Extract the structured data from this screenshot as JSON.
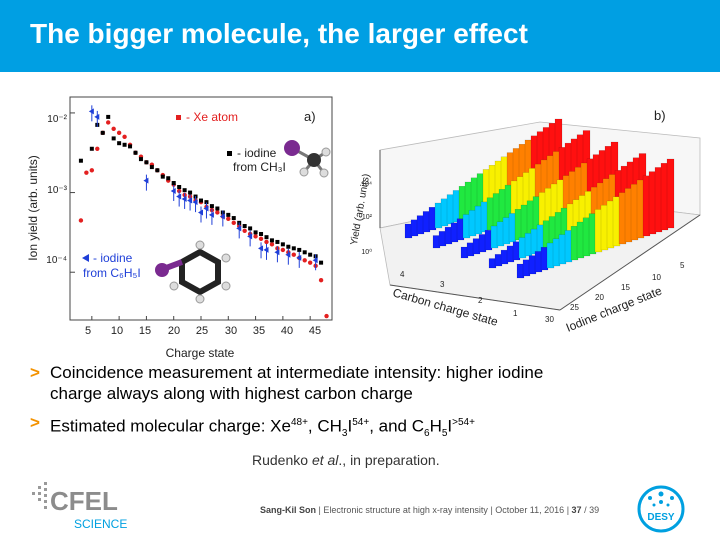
{
  "slide": {
    "title": "The bigger molecule, the larger effect",
    "bullets": {
      "b1_line1": "Coincidence measurement at intermediate intensity: higher iodine",
      "b1_line2": "charge always along with highest carbon charge",
      "b2_pre": "Estimated molecular charge: Xe",
      "b2_xe_sup": "48+",
      "b2_mid1": ", CH",
      "b2_ch_sub": "3",
      "b2_i1": "I",
      "b2_i1_sup": "54+",
      "b2_mid2": ", and C",
      "b2_c_sub": "6",
      "b2_h": "H",
      "b2_h_sub": "5",
      "b2_i2": "I",
      "b2_i2_sup": ">54+"
    },
    "citation_pre": "Rudenko ",
    "citation_em": "et al",
    "citation_post": "., in preparation.",
    "footer": {
      "author": "Sang-Kil Son",
      "talk": "Electronic structure at high x-ray intensity",
      "date": "October 11, 2016",
      "page": "37",
      "total": "39"
    },
    "logos": {
      "cfel_text": "CFEL",
      "cfel_sub": "SCIENCE",
      "desy_text": "DESY"
    },
    "colors": {
      "title_bar": "#009fe3",
      "bullet_mark": "#f39200"
    }
  },
  "chart_data": [
    {
      "type": "scatter",
      "panel_label": "a)",
      "xlabel": "Charge state",
      "ylabel": "Ion yield  (arb. units)",
      "xticks": [
        "5",
        "10",
        "15",
        "20",
        "25",
        "30",
        "35",
        "40",
        "45"
      ],
      "yticks": [
        "10⁻²",
        "10⁻³",
        "10⁻⁴"
      ],
      "xlim": [
        1,
        49
      ],
      "ylog_range": [
        -4.6,
        -1.8
      ],
      "legend": [
        {
          "name": "- Xe atom",
          "color": "#e32020"
        },
        {
          "name": "- iodine",
          "sub": "from CH₃I",
          "color": "#000000"
        },
        {
          "name": "- iodine",
          "sub": "from C₆H₅I",
          "color": "#1f3fd8"
        }
      ],
      "series": [
        {
          "name": "Xe atom",
          "color": "#e32020",
          "points": [
            [
              3,
              -3.35
            ],
            [
              4,
              -2.75
            ],
            [
              5,
              -2.72
            ],
            [
              6,
              -2.45
            ],
            [
              7,
              -2.25
            ],
            [
              8,
              -2.12
            ],
            [
              9,
              -2.2
            ],
            [
              10,
              -2.25
            ],
            [
              11,
              -2.3
            ],
            [
              12,
              -2.4
            ],
            [
              13,
              -2.5
            ],
            [
              14,
              -2.55
            ],
            [
              15,
              -2.62
            ],
            [
              16,
              -2.65
            ],
            [
              17,
              -2.72
            ],
            [
              18,
              -2.78
            ],
            [
              19,
              -2.85
            ],
            [
              20,
              -2.9
            ],
            [
              21,
              -2.98
            ],
            [
              22,
              -3.03
            ],
            [
              23,
              -3.05
            ],
            [
              24,
              -3.1
            ],
            [
              25,
              -3.12
            ],
            [
              26,
              -3.18
            ],
            [
              27,
              -3.22
            ],
            [
              28,
              -3.25
            ],
            [
              29,
              -3.3
            ],
            [
              30,
              -3.33
            ],
            [
              31,
              -3.38
            ],
            [
              32,
              -3.42
            ],
            [
              33,
              -3.48
            ],
            [
              34,
              -3.52
            ],
            [
              35,
              -3.55
            ],
            [
              36,
              -3.58
            ],
            [
              37,
              -3.62
            ],
            [
              38,
              -3.65
            ],
            [
              39,
              -3.7
            ],
            [
              40,
              -3.72
            ],
            [
              41,
              -3.75
            ],
            [
              42,
              -3.78
            ],
            [
              43,
              -3.82
            ],
            [
              44,
              -3.85
            ],
            [
              45,
              -3.88
            ],
            [
              46,
              -3.92
            ],
            [
              47,
              -4.1
            ],
            [
              48,
              -4.55
            ]
          ]
        },
        {
          "name": "iodine from CH3I",
          "color": "#000000",
          "points": [
            [
              3,
              -2.6
            ],
            [
              5,
              -2.45
            ],
            [
              6,
              -2.15
            ],
            [
              7,
              -2.25
            ],
            [
              8,
              -2.05
            ],
            [
              9,
              -2.32
            ],
            [
              10,
              -2.38
            ],
            [
              11,
              -2.4
            ],
            [
              12,
              -2.42
            ],
            [
              13,
              -2.5
            ],
            [
              14,
              -2.58
            ],
            [
              15,
              -2.62
            ],
            [
              16,
              -2.68
            ],
            [
              17,
              -2.72
            ],
            [
              18,
              -2.8
            ],
            [
              19,
              -2.82
            ],
            [
              20,
              -2.88
            ],
            [
              21,
              -2.93
            ],
            [
              22,
              -2.97
            ],
            [
              23,
              -3.0
            ],
            [
              24,
              -3.05
            ],
            [
              25,
              -3.1
            ],
            [
              26,
              -3.12
            ],
            [
              27,
              -3.17
            ],
            [
              28,
              -3.2
            ],
            [
              29,
              -3.25
            ],
            [
              30,
              -3.28
            ],
            [
              31,
              -3.32
            ],
            [
              32,
              -3.38
            ],
            [
              33,
              -3.42
            ],
            [
              34,
              -3.45
            ],
            [
              35,
              -3.5
            ],
            [
              36,
              -3.52
            ],
            [
              37,
              -3.56
            ],
            [
              38,
              -3.6
            ],
            [
              39,
              -3.62
            ],
            [
              40,
              -3.65
            ],
            [
              41,
              -3.68
            ],
            [
              42,
              -3.7
            ],
            [
              43,
              -3.72
            ],
            [
              44,
              -3.75
            ],
            [
              45,
              -3.78
            ],
            [
              46,
              -3.8
            ],
            [
              47,
              -3.88
            ]
          ]
        },
        {
          "name": "iodine from C6H5I",
          "color": "#1f3fd8",
          "points": [
            [
              5,
              -1.98
            ],
            [
              6,
              -2.05
            ],
            [
              15,
              -2.85
            ],
            [
              20,
              -2.98
            ],
            [
              21,
              -3.05
            ],
            [
              22,
              -3.08
            ],
            [
              23,
              -3.1
            ],
            [
              24,
              -3.12
            ],
            [
              25,
              -3.25
            ],
            [
              26,
              -3.2
            ],
            [
              27,
              -3.28
            ],
            [
              29,
              -3.3
            ],
            [
              32,
              -3.45
            ],
            [
              34,
              -3.55
            ],
            [
              36,
              -3.7
            ],
            [
              37,
              -3.72
            ],
            [
              39,
              -3.75
            ],
            [
              41,
              -3.78
            ],
            [
              43,
              -3.82
            ],
            [
              46,
              -3.85
            ]
          ]
        }
      ]
    },
    {
      "type": "bar",
      "subtype": "3d-histogram",
      "panel_label": "b)",
      "xlabel": "Iodine charge state",
      "ylabel": "Carbon charge state",
      "zlabel": "Yield (arb. units)",
      "x_ticks": [
        "5",
        "10",
        "15",
        "20",
        "25",
        "30"
      ],
      "y_ticks": [
        "1",
        "2",
        "3",
        "4"
      ],
      "z_ticks": [
        "10⁴",
        "10³",
        "10²",
        "10¹",
        "10⁰"
      ],
      "colorscale": [
        "#1020ff",
        "#00c8ff",
        "#20e840",
        "#f8f000",
        "#ff8000",
        "#ff1010"
      ]
    }
  ]
}
